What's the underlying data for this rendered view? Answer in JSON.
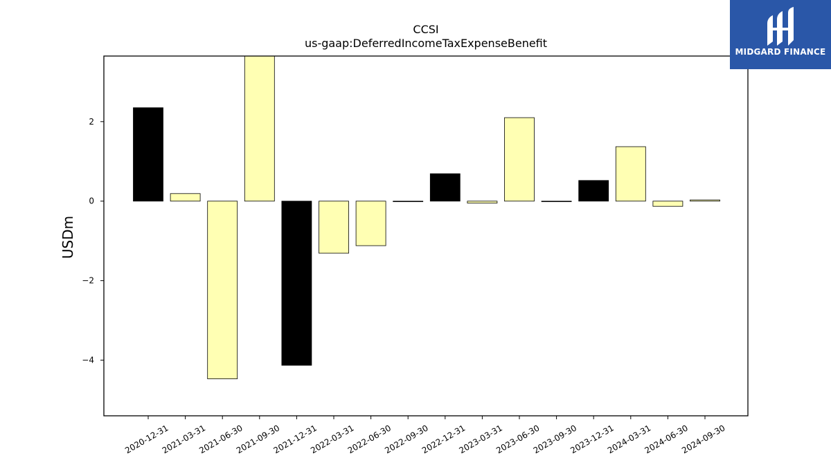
{
  "chart_data": {
    "type": "bar",
    "title": "CCSI",
    "subtitle": "us-gaap:DeferredIncomeTaxExpenseBenefit",
    "ylabel": "USDm",
    "xlabel": "",
    "categories": [
      "2020-12-31",
      "2021-03-31",
      "2021-06-30",
      "2021-09-30",
      "2021-12-31",
      "2022-03-31",
      "2022-06-30",
      "2022-09-30",
      "2022-12-31",
      "2023-03-31",
      "2023-06-30",
      "2023-09-30",
      "2023-12-31",
      "2024-03-31",
      "2024-06-30",
      "2024-09-30"
    ],
    "values": [
      2.35,
      0.19,
      -4.47,
      3.7,
      -4.13,
      -1.31,
      -1.12,
      0.0,
      0.69,
      -0.05,
      2.1,
      0.0,
      0.52,
      1.37,
      -0.13,
      0.03
    ],
    "bar_colors": [
      "#000000",
      "#ffffb3",
      "#ffffb3",
      "#ffffb3",
      "#000000",
      "#ffffb3",
      "#ffffb3",
      "#ffffb3",
      "#000000",
      "#ffffb3",
      "#ffffb3",
      "#ffffb3",
      "#000000",
      "#ffffb3",
      "#ffffb3",
      "#ffffb3"
    ],
    "ylim": [
      -5.4,
      3.65
    ],
    "yticks": [
      -4,
      -2,
      0,
      2
    ],
    "ytick_labels": [
      "−4",
      "−2",
      "0",
      "2"
    ],
    "grid": false,
    "legend": "none"
  },
  "logo": {
    "text": "MIDGARD FINANCE",
    "background": "#2a57a8"
  }
}
